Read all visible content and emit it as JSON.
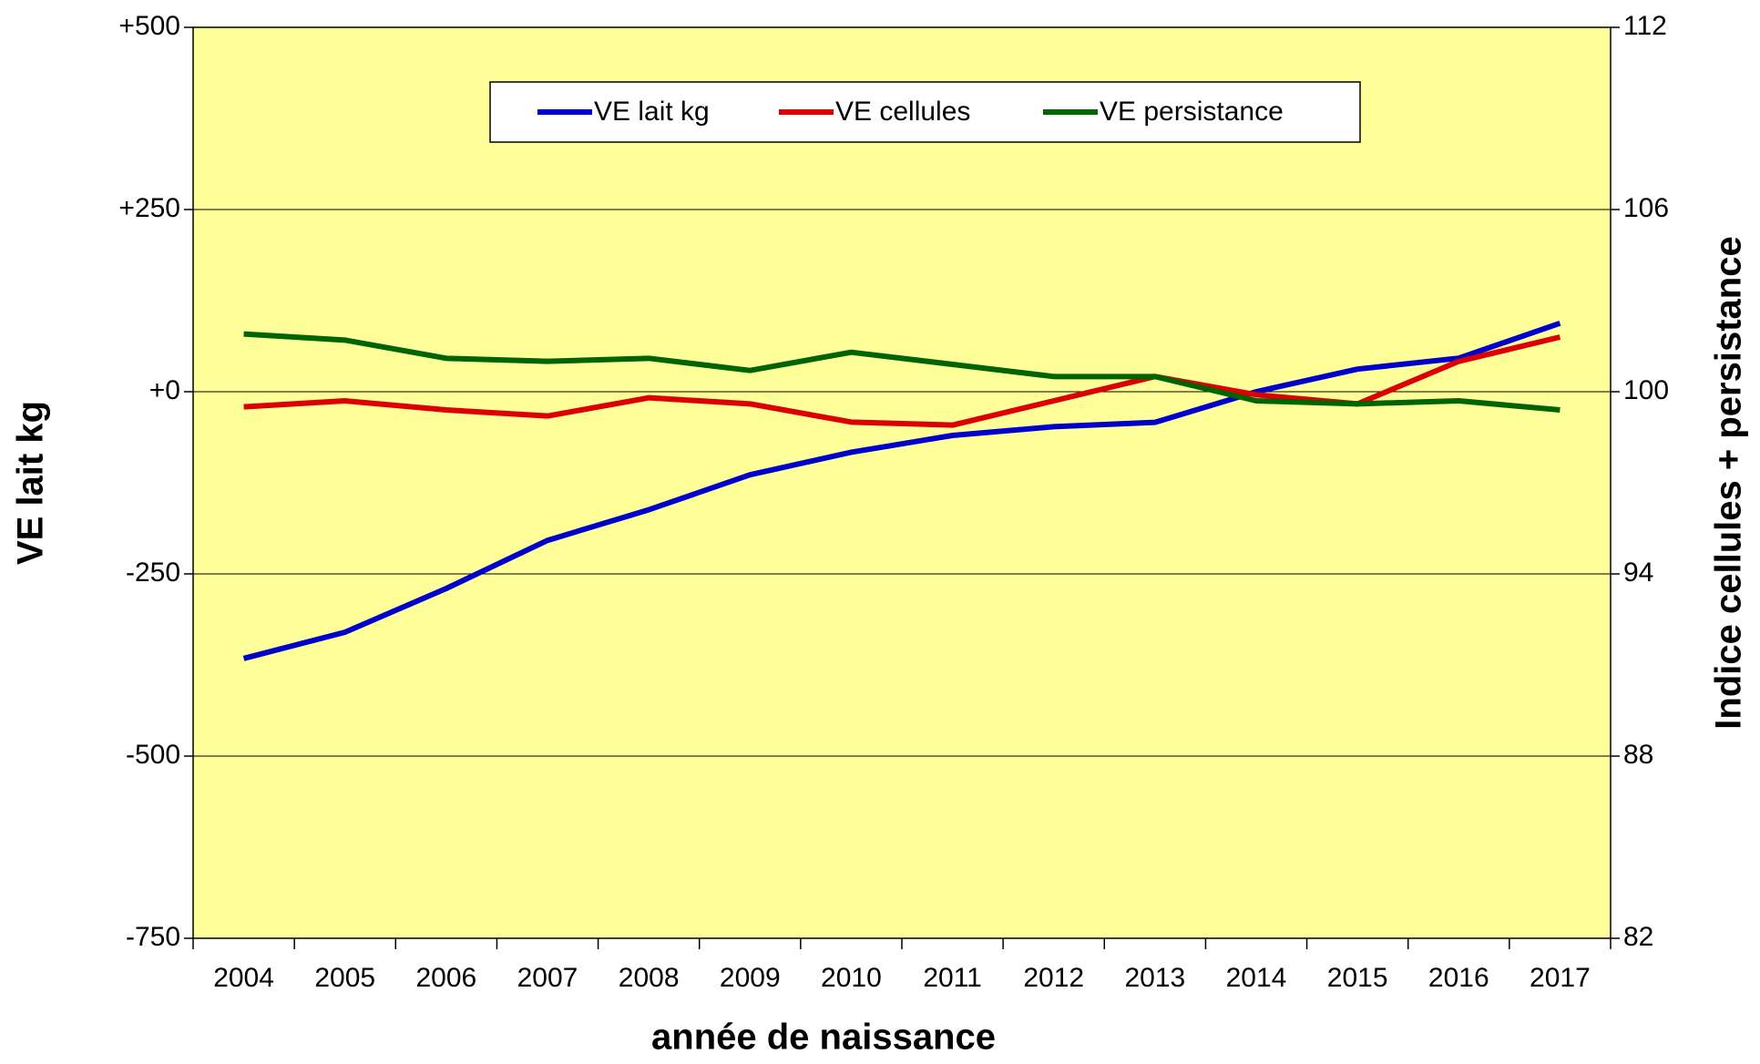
{
  "chart_data": {
    "type": "line",
    "categories": [
      "2004",
      "2005",
      "2006",
      "2007",
      "2008",
      "2009",
      "2010",
      "2011",
      "2012",
      "2013",
      "2014",
      "2015",
      "2016",
      "2017"
    ],
    "xlabel": "année de naissance",
    "ylabel": "VE lait kg",
    "y2label": "Indice cellules + persistance",
    "ylim": [
      -750,
      500
    ],
    "yticks": [
      -750,
      -500,
      -250,
      {
        "value": 0,
        "label": "+0"
      },
      {
        "value": 250,
        "label": "+250"
      },
      {
        "value": 500,
        "label": "+500"
      }
    ],
    "y2lim": [
      82,
      112
    ],
    "y2ticks": [
      82,
      88,
      94,
      100,
      106,
      112
    ],
    "grid": true,
    "legend": "top",
    "series": [
      {
        "name": "VE lait kg",
        "color": "#0000cc",
        "values": [
          -366,
          -330,
          -270,
          -204,
          -162,
          -114,
          -83,
          -60,
          -48,
          -42,
          0,
          31,
          46,
          94
        ]
      },
      {
        "name": "VE cellules",
        "color": "#dd0000",
        "axis": "y2",
        "values": [
          99.5,
          99.7,
          99.4,
          99.2,
          99.8,
          99.6,
          99.0,
          98.9,
          99.7,
          100.5,
          99.9,
          99.6,
          101.0,
          101.8
        ]
      },
      {
        "name": "VE persistance",
        "color": "#006400",
        "axis": "y2",
        "values": [
          101.9,
          101.7,
          101.1,
          101.0,
          101.1,
          100.7,
          101.3,
          100.9,
          100.5,
          100.5,
          99.7,
          99.6,
          99.7,
          99.4
        ]
      }
    ]
  }
}
